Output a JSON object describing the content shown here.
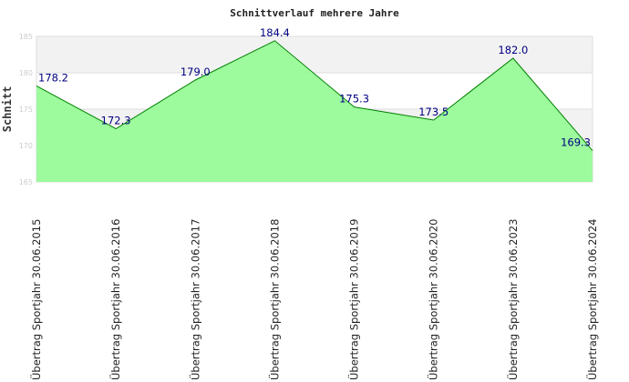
{
  "chart_data": {
    "type": "area",
    "title": "Schnittverlauf mehrere Jahre",
    "ylabel": "Schnitt",
    "xlabel": "",
    "ylim": [
      165,
      185
    ],
    "yticks": [
      "165",
      "170",
      "175",
      "180",
      "185"
    ],
    "categories": [
      "Übertrag Sportjahr 30.06.2015",
      "Übertrag Sportjahr 30.06.2016",
      "Übertrag Sportjahr 30.06.2017",
      "Übertrag Sportjahr 30.06.2018",
      "Übertrag Sportjahr 30.06.2019",
      "Übertrag Sportjahr 30.06.2020",
      "Übertrag Sportjahr 30.06.2023",
      "Übertrag Sportjahr 30.06.2024"
    ],
    "values": [
      178.2,
      172.3,
      179.0,
      184.4,
      175.3,
      173.5,
      182.0,
      169.3
    ],
    "labels": [
      "178.2",
      "172.3",
      "179.0",
      "184.4",
      "175.3",
      "173.5",
      "182.0",
      "169.3"
    ],
    "fill_color": "#98fb98",
    "line_color": "#008000",
    "label_color": "#000080"
  }
}
